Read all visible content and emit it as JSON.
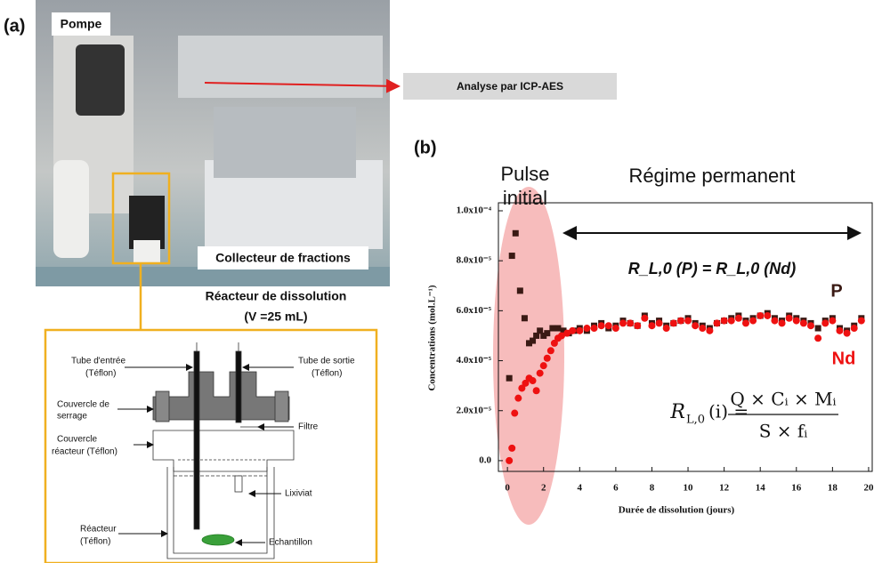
{
  "panel_a": {
    "label": "(a)",
    "pump": "Pompe",
    "collector": "Collecteur de fractions",
    "analysis": "Analyse par ICP-AES",
    "reactor_title": "Réacteur de dissolution",
    "reactor_volume": "(V =25 mL)",
    "diagram": {
      "tube_in": [
        "Tube d'entrée",
        "(Téflon)"
      ],
      "tube_out": [
        "Tube de sortie",
        "(Téflon)"
      ],
      "clamp_lid": [
        "Couvercle de",
        "serrage"
      ],
      "reactor_lid": [
        "Couvercle",
        "réacteur (Téflon)"
      ],
      "filter": "Filtre",
      "leachate": "Lixiviat",
      "reactor": [
        "Réacteur",
        "(Téflon)"
      ],
      "sample": "Echantillon"
    }
  },
  "chart_data": {
    "type": "scatter",
    "panel_label": "(b)",
    "x_label": "Durée de dissolution (jours)",
    "y_label": "Concentrations (mol.L⁻¹)",
    "xlim": [
      -0.5,
      20.2
    ],
    "ylim": [
      -4.3e-06,
      0.0001032
    ],
    "xticks": [
      0,
      2,
      4,
      6,
      8,
      10,
      12,
      14,
      16,
      18,
      20
    ],
    "yticks": [
      {
        "value": 0,
        "label": "0.0"
      },
      {
        "value": 2e-05,
        "label": "2.0x10⁻⁵"
      },
      {
        "value": 4e-05,
        "label": "4.0x10⁻⁵"
      },
      {
        "value": 6e-05,
        "label": "6.0x10⁻⁵"
      },
      {
        "value": 8e-05,
        "label": "8.0x10⁻⁵"
      },
      {
        "value": 0.0001,
        "label": "1.0x10⁻⁴"
      }
    ],
    "annotations": {
      "pulse": [
        "Pulse",
        "initial"
      ],
      "steady": "Régime permanent",
      "equality": "R_L,0 (P) = R_L,0 (Nd)",
      "formula_lhs": "R",
      "formula_sub": "L,0",
      "formula_lhs_end": "(i) =",
      "formula_num": "Q  × Cᵢ × Mᵢ",
      "formula_den": "S × fᵢ"
    },
    "series": [
      {
        "name": "P",
        "color": "#3a1a14",
        "marker": "square",
        "x": [
          0.1,
          0.25,
          0.45,
          0.7,
          0.95,
          1.2,
          1.4,
          1.6,
          1.8,
          2.0,
          2.2,
          2.5,
          2.8,
          3.1,
          3.4,
          3.7,
          4.0,
          4.4,
          4.8,
          5.2,
          5.6,
          6.0,
          6.4,
          6.8,
          7.2,
          7.6,
          8.0,
          8.4,
          8.8,
          9.2,
          9.6,
          10.0,
          10.4,
          10.8,
          11.2,
          11.6,
          12.0,
          12.4,
          12.8,
          13.2,
          13.6,
          14.0,
          14.4,
          14.8,
          15.2,
          15.6,
          16.0,
          16.4,
          16.8,
          17.2,
          17.6,
          18.0,
          18.4,
          18.8,
          19.2,
          19.6
        ],
        "values": [
          3.3e-05,
          8.2e-05,
          9.1e-05,
          6.8e-05,
          5.7e-05,
          4.7e-05,
          4.8e-05,
          5e-05,
          5.2e-05,
          5e-05,
          5.1e-05,
          5.3e-05,
          5.3e-05,
          5.2e-05,
          5.1e-05,
          5.2e-05,
          5.3e-05,
          5.2e-05,
          5.4e-05,
          5.5e-05,
          5.3e-05,
          5.4e-05,
          5.6e-05,
          5.5e-05,
          5.4e-05,
          5.8e-05,
          5.5e-05,
          5.6e-05,
          5.4e-05,
          5.5e-05,
          5.6e-05,
          5.7e-05,
          5.5e-05,
          5.4e-05,
          5.3e-05,
          5.5e-05,
          5.6e-05,
          5.7e-05,
          5.8e-05,
          5.6e-05,
          5.7e-05,
          5.8e-05,
          5.9e-05,
          5.7e-05,
          5.6e-05,
          5.8e-05,
          5.7e-05,
          5.6e-05,
          5.5e-05,
          5.3e-05,
          5.6e-05,
          5.7e-05,
          5.3e-05,
          5.2e-05,
          5.4e-05,
          5.7e-05
        ]
      },
      {
        "name": "Nd",
        "color": "#ee1111",
        "marker": "circle",
        "x": [
          0.1,
          0.25,
          0.4,
          0.6,
          0.8,
          1.0,
          1.2,
          1.4,
          1.6,
          1.8,
          2.0,
          2.2,
          2.4,
          2.6,
          2.8,
          3.0,
          3.3,
          3.6,
          4.0,
          4.4,
          4.8,
          5.2,
          5.6,
          6.0,
          6.4,
          6.8,
          7.2,
          7.6,
          8.0,
          8.4,
          8.8,
          9.2,
          9.6,
          10.0,
          10.4,
          10.8,
          11.2,
          11.6,
          12.0,
          12.4,
          12.8,
          13.2,
          13.6,
          14.0,
          14.4,
          14.8,
          15.2,
          15.6,
          16.0,
          16.4,
          16.8,
          17.2,
          17.6,
          18.0,
          18.4,
          18.8,
          19.2,
          19.6
        ],
        "values": [
          0,
          5e-06,
          1.9e-05,
          2.5e-05,
          2.9e-05,
          3.1e-05,
          3.3e-05,
          3.2e-05,
          2.8e-05,
          3.5e-05,
          3.8e-05,
          4.1e-05,
          4.4e-05,
          4.7e-05,
          4.9e-05,
          5e-05,
          5.1e-05,
          5.2e-05,
          5.2e-05,
          5.3e-05,
          5.3e-05,
          5.4e-05,
          5.4e-05,
          5.3e-05,
          5.5e-05,
          5.5e-05,
          5.4e-05,
          5.7e-05,
          5.4e-05,
          5.5e-05,
          5.3e-05,
          5.5e-05,
          5.6e-05,
          5.6e-05,
          5.4e-05,
          5.3e-05,
          5.2e-05,
          5.5e-05,
          5.6e-05,
          5.6e-05,
          5.7e-05,
          5.5e-05,
          5.6e-05,
          5.8e-05,
          5.8e-05,
          5.6e-05,
          5.5e-05,
          5.7e-05,
          5.6e-05,
          5.5e-05,
          5.4e-05,
          4.9e-05,
          5.5e-05,
          5.6e-05,
          5.2e-05,
          5.1e-05,
          5.3e-05,
          5.6e-05
        ]
      }
    ]
  }
}
